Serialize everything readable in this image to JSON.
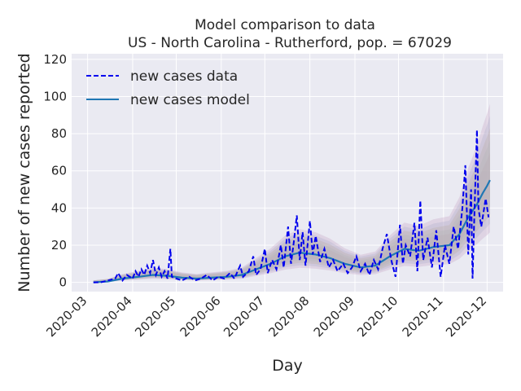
{
  "chart_data": {
    "type": "line",
    "title_line1": "Model comparison to data",
    "title_line2": "US - North Carolina - Rutherford, pop. = 67029",
    "xlabel": "Day",
    "ylabel": "Number of new cases reported",
    "xlim": [
      "2020-02-19",
      "2020-12-12"
    ],
    "ylim": [
      -5,
      123
    ],
    "x_ticks": [
      "2020-03",
      "2020-04",
      "2020-05",
      "2020-06",
      "2020-07",
      "2020-08",
      "2020-09",
      "2020-10",
      "2020-11",
      "2020-12"
    ],
    "y_ticks": [
      0,
      20,
      40,
      60,
      80,
      100,
      120
    ],
    "grid": true,
    "legend": {
      "placement": "top-left",
      "entries": [
        {
          "label": "new cases data",
          "style": "dashed",
          "color": "#0000ee"
        },
        {
          "label": "new cases model",
          "style": "solid",
          "color": "#1f77b4"
        }
      ]
    },
    "series": [
      {
        "key": "data",
        "color": "#0000ee",
        "style": "dashed",
        "points": [
          [
            "2020-03-05",
            0
          ],
          [
            "2020-03-10",
            0
          ],
          [
            "2020-03-15",
            1
          ],
          [
            "2020-03-20",
            2
          ],
          [
            "2020-03-22",
            5
          ],
          [
            "2020-03-25",
            1
          ],
          [
            "2020-03-28",
            4
          ],
          [
            "2020-04-01",
            2
          ],
          [
            "2020-04-03",
            6
          ],
          [
            "2020-04-05",
            3
          ],
          [
            "2020-04-07",
            7
          ],
          [
            "2020-04-09",
            4
          ],
          [
            "2020-04-11",
            9
          ],
          [
            "2020-04-13",
            5
          ],
          [
            "2020-04-15",
            12
          ],
          [
            "2020-04-17",
            4
          ],
          [
            "2020-04-19",
            8
          ],
          [
            "2020-04-21",
            3
          ],
          [
            "2020-04-23",
            6
          ],
          [
            "2020-04-25",
            2
          ],
          [
            "2020-04-27",
            18
          ],
          [
            "2020-04-28",
            3
          ],
          [
            "2020-05-01",
            2
          ],
          [
            "2020-05-05",
            1
          ],
          [
            "2020-05-10",
            3
          ],
          [
            "2020-05-14",
            1
          ],
          [
            "2020-05-18",
            2
          ],
          [
            "2020-05-22",
            4
          ],
          [
            "2020-05-26",
            1
          ],
          [
            "2020-05-30",
            3
          ],
          [
            "2020-06-03",
            2
          ],
          [
            "2020-06-07",
            5
          ],
          [
            "2020-06-10",
            2
          ],
          [
            "2020-06-14",
            9
          ],
          [
            "2020-06-16",
            3
          ],
          [
            "2020-06-20",
            6
          ],
          [
            "2020-06-23",
            14
          ],
          [
            "2020-06-25",
            4
          ],
          [
            "2020-06-28",
            7
          ],
          [
            "2020-07-01",
            18
          ],
          [
            "2020-07-03",
            5
          ],
          [
            "2020-07-06",
            12
          ],
          [
            "2020-07-09",
            7
          ],
          [
            "2020-07-12",
            20
          ],
          [
            "2020-07-14",
            8
          ],
          [
            "2020-07-17",
            30
          ],
          [
            "2020-07-19",
            10
          ],
          [
            "2020-07-21",
            22
          ],
          [
            "2020-07-23",
            36
          ],
          [
            "2020-07-25",
            12
          ],
          [
            "2020-07-27",
            27
          ],
          [
            "2020-07-29",
            9
          ],
          [
            "2020-08-01",
            33
          ],
          [
            "2020-08-03",
            15
          ],
          [
            "2020-08-05",
            25
          ],
          [
            "2020-08-08",
            11
          ],
          [
            "2020-08-11",
            18
          ],
          [
            "2020-08-14",
            8
          ],
          [
            "2020-08-17",
            12
          ],
          [
            "2020-08-20",
            6
          ],
          [
            "2020-08-24",
            10
          ],
          [
            "2020-08-27",
            5
          ],
          [
            "2020-08-30",
            8
          ],
          [
            "2020-09-02",
            14
          ],
          [
            "2020-09-05",
            6
          ],
          [
            "2020-09-08",
            10
          ],
          [
            "2020-09-11",
            4
          ],
          [
            "2020-09-14",
            12
          ],
          [
            "2020-09-17",
            7
          ],
          [
            "2020-09-20",
            18
          ],
          [
            "2020-09-23",
            26
          ],
          [
            "2020-09-26",
            12
          ],
          [
            "2020-09-29",
            3
          ],
          [
            "2020-10-02",
            31
          ],
          [
            "2020-10-04",
            10
          ],
          [
            "2020-10-06",
            20
          ],
          [
            "2020-10-09",
            14
          ],
          [
            "2020-10-12",
            32
          ],
          [
            "2020-10-14",
            6
          ],
          [
            "2020-10-16",
            44
          ],
          [
            "2020-10-18",
            12
          ],
          [
            "2020-10-21",
            24
          ],
          [
            "2020-10-24",
            8
          ],
          [
            "2020-10-27",
            28
          ],
          [
            "2020-10-30",
            3
          ],
          [
            "2020-11-02",
            20
          ],
          [
            "2020-11-05",
            10
          ],
          [
            "2020-11-08",
            30
          ],
          [
            "2020-11-11",
            18
          ],
          [
            "2020-11-14",
            40
          ],
          [
            "2020-11-16",
            63
          ],
          [
            "2020-11-18",
            15
          ],
          [
            "2020-11-20",
            50
          ],
          [
            "2020-11-21",
            2
          ],
          [
            "2020-11-22",
            30
          ],
          [
            "2020-11-24",
            82
          ],
          [
            "2020-11-25",
            40
          ],
          [
            "2020-11-27",
            30
          ],
          [
            "2020-11-30",
            45
          ],
          [
            "2020-12-02",
            35
          ]
        ]
      },
      {
        "key": "model",
        "color": "#1f77b4",
        "style": "solid",
        "points": [
          [
            "2020-03-05",
            0
          ],
          [
            "2020-03-15",
            0.5
          ],
          [
            "2020-03-25",
            2
          ],
          [
            "2020-04-05",
            3
          ],
          [
            "2020-04-15",
            4
          ],
          [
            "2020-04-25",
            3.5
          ],
          [
            "2020-05-05",
            2.5
          ],
          [
            "2020-05-15",
            2
          ],
          [
            "2020-05-25",
            2.5
          ],
          [
            "2020-06-05",
            3
          ],
          [
            "2020-06-15",
            4
          ],
          [
            "2020-06-25",
            7
          ],
          [
            "2020-07-05",
            10
          ],
          [
            "2020-07-15",
            14
          ],
          [
            "2020-07-25",
            16
          ],
          [
            "2020-08-05",
            15
          ],
          [
            "2020-08-15",
            13
          ],
          [
            "2020-08-25",
            10
          ],
          [
            "2020-09-05",
            8
          ],
          [
            "2020-09-15",
            9
          ],
          [
            "2020-09-25",
            14
          ],
          [
            "2020-10-05",
            18
          ],
          [
            "2020-10-15",
            17
          ],
          [
            "2020-10-25",
            19
          ],
          [
            "2020-11-05",
            20
          ],
          [
            "2020-11-12",
            26
          ],
          [
            "2020-11-18",
            35
          ],
          [
            "2020-11-24",
            42
          ],
          [
            "2020-11-28",
            48
          ],
          [
            "2020-12-01",
            52
          ],
          [
            "2020-12-03",
            55
          ]
        ]
      }
    ]
  }
}
